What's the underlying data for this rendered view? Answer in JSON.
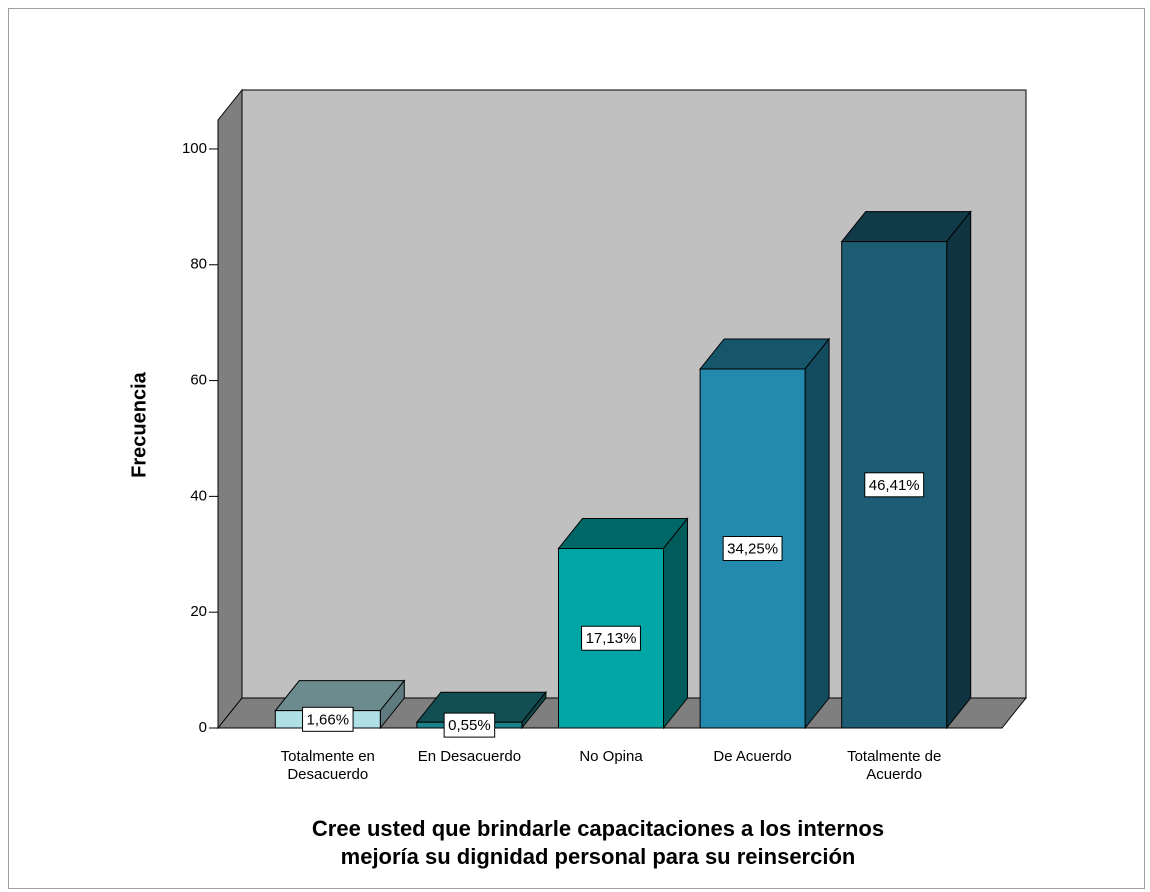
{
  "chart_data": {
    "type": "bar3d",
    "y_label": "Frecuencia",
    "x_label": [
      "Cree usted que brindarle capacitaciones a los internos",
      "mejoría su dignidad personal  para su reinserción"
    ],
    "categories": [
      [
        "Totalmente en",
        "Desacuerdo"
      ],
      [
        "En Desacuerdo"
      ],
      [
        "No Opina"
      ],
      [
        "De Acuerdo"
      ],
      [
        "Totalmente de",
        "Acuerdo"
      ]
    ],
    "values": [
      3,
      1,
      31,
      62,
      84
    ],
    "percent_values": [
      1.66,
      0.55,
      17.13,
      34.25,
      46.41
    ],
    "percent_labels": [
      "1,66%",
      "0,55%",
      "17,13%",
      "34,25%",
      "46,41%"
    ],
    "colors": [
      "#aee0e6",
      "#1b8087",
      "#00a6a6",
      "#248aad",
      "#1c5d74"
    ],
    "ylim": [
      0,
      105
    ],
    "yticks": [
      0,
      20,
      40,
      60,
      80,
      100
    ]
  }
}
